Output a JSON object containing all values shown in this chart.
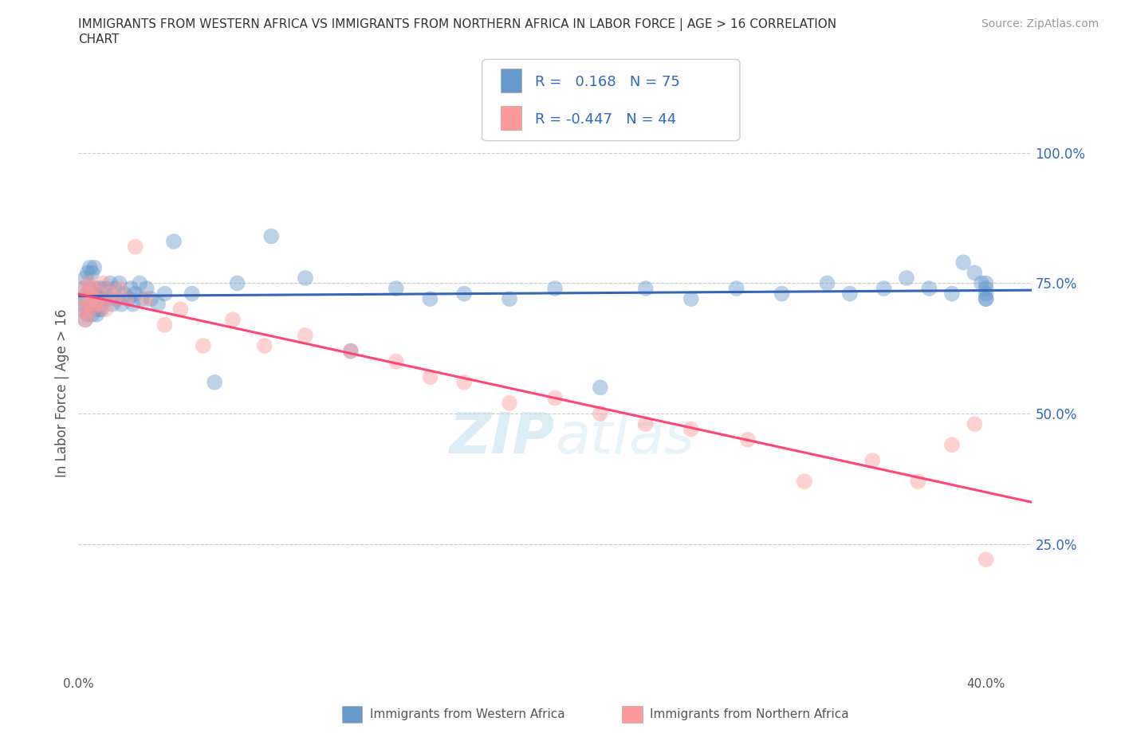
{
  "title_line1": "IMMIGRANTS FROM WESTERN AFRICA VS IMMIGRANTS FROM NORTHERN AFRICA IN LABOR FORCE | AGE > 16 CORRELATION",
  "title_line2": "CHART",
  "source": "Source: ZipAtlas.com",
  "ylabel": "In Labor Force | Age > 16",
  "x_ticks": [
    0.0,
    0.05,
    0.1,
    0.15,
    0.2,
    0.25,
    0.3,
    0.35,
    0.4
  ],
  "y_ticks": [
    0.0,
    0.25,
    0.5,
    0.75,
    1.0
  ],
  "y_tick_labels": [
    "",
    "25.0%",
    "50.0%",
    "75.0%",
    "100.0%"
  ],
  "xlim": [
    0.0,
    0.42
  ],
  "ylim": [
    0.0,
    1.08
  ],
  "blue_color": "#6699CC",
  "pink_color": "#FF9999",
  "blue_line_color": "#3366BB",
  "pink_line_color": "#FF4477",
  "background_color": "#FFFFFF",
  "grid_color": "#CCCCCC",
  "r_blue": 0.168,
  "n_blue": 75,
  "r_pink": -0.447,
  "n_pink": 44,
  "legend_label_blue": "Immigrants from Western Africa",
  "legend_label_pink": "Immigrants from Northern Africa",
  "watermark": "ZIPatlas",
  "blue_x": [
    0.001,
    0.002,
    0.002,
    0.003,
    0.003,
    0.003,
    0.004,
    0.004,
    0.004,
    0.005,
    0.005,
    0.005,
    0.006,
    0.006,
    0.006,
    0.007,
    0.007,
    0.007,
    0.008,
    0.008,
    0.009,
    0.009,
    0.01,
    0.01,
    0.011,
    0.012,
    0.013,
    0.014,
    0.015,
    0.016,
    0.017,
    0.018,
    0.019,
    0.02,
    0.022,
    0.023,
    0.024,
    0.025,
    0.027,
    0.028,
    0.03,
    0.032,
    0.035,
    0.038,
    0.042,
    0.05,
    0.06,
    0.07,
    0.085,
    0.1,
    0.12,
    0.14,
    0.155,
    0.17,
    0.19,
    0.21,
    0.23,
    0.25,
    0.27,
    0.29,
    0.31,
    0.33,
    0.34,
    0.355,
    0.365,
    0.375,
    0.385,
    0.39,
    0.395,
    0.398,
    0.4,
    0.4,
    0.4,
    0.4,
    0.4
  ],
  "blue_y": [
    0.71,
    0.7,
    0.74,
    0.68,
    0.72,
    0.76,
    0.69,
    0.73,
    0.77,
    0.7,
    0.74,
    0.78,
    0.69,
    0.73,
    0.77,
    0.7,
    0.74,
    0.78,
    0.69,
    0.73,
    0.7,
    0.74,
    0.7,
    0.74,
    0.72,
    0.74,
    0.72,
    0.75,
    0.71,
    0.74,
    0.72,
    0.75,
    0.71,
    0.73,
    0.72,
    0.74,
    0.71,
    0.73,
    0.75,
    0.72,
    0.74,
    0.72,
    0.71,
    0.73,
    0.83,
    0.73,
    0.56,
    0.75,
    0.84,
    0.76,
    0.62,
    0.74,
    0.72,
    0.73,
    0.72,
    0.74,
    0.55,
    0.74,
    0.72,
    0.74,
    0.73,
    0.75,
    0.73,
    0.74,
    0.76,
    0.74,
    0.73,
    0.79,
    0.77,
    0.75,
    0.72,
    0.73,
    0.74,
    0.75,
    0.72
  ],
  "pink_x": [
    0.001,
    0.002,
    0.003,
    0.003,
    0.004,
    0.004,
    0.005,
    0.005,
    0.006,
    0.006,
    0.007,
    0.008,
    0.009,
    0.01,
    0.011,
    0.012,
    0.014,
    0.016,
    0.018,
    0.021,
    0.025,
    0.03,
    0.038,
    0.045,
    0.055,
    0.068,
    0.082,
    0.1,
    0.12,
    0.14,
    0.155,
    0.17,
    0.19,
    0.21,
    0.23,
    0.25,
    0.27,
    0.295,
    0.32,
    0.35,
    0.37,
    0.385,
    0.395,
    0.4
  ],
  "pink_y": [
    0.72,
    0.7,
    0.68,
    0.74,
    0.69,
    0.73,
    0.71,
    0.75,
    0.7,
    0.74,
    0.72,
    0.71,
    0.73,
    0.71,
    0.75,
    0.7,
    0.73,
    0.72,
    0.74,
    0.72,
    0.82,
    0.72,
    0.67,
    0.7,
    0.63,
    0.68,
    0.63,
    0.65,
    0.62,
    0.6,
    0.57,
    0.56,
    0.52,
    0.53,
    0.5,
    0.48,
    0.47,
    0.45,
    0.37,
    0.41,
    0.37,
    0.44,
    0.48,
    0.22
  ]
}
